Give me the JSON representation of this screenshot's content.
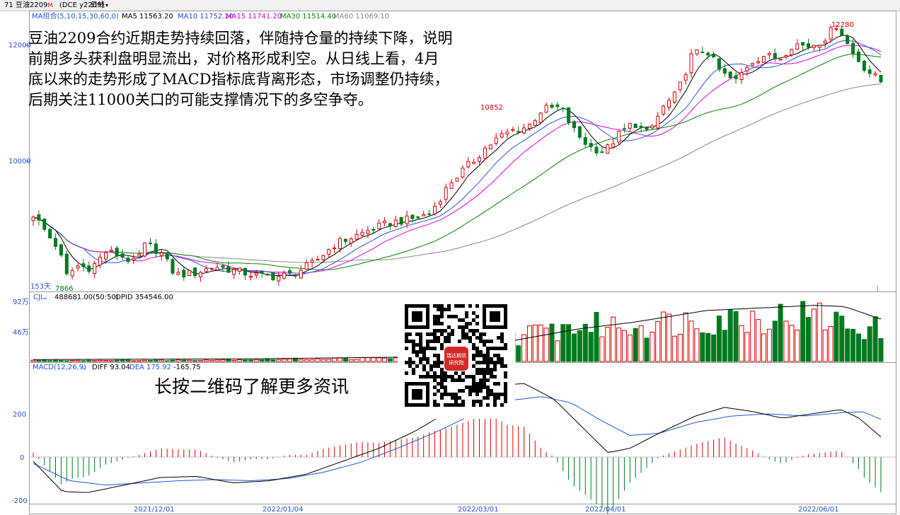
{
  "title_bar": {
    "code_label": "71",
    "instrument": "豆油2209",
    "flag": "M",
    "exchange": "(DCE y2209)",
    "period": "日线"
  },
  "colors": {
    "up": "#dd0000",
    "down": "#007a1e",
    "ma5": "#000000",
    "ma10": "#2255dd",
    "ma15": "#dd00dd",
    "ma30": "#008800",
    "ma60": "#888888",
    "axis": "#2255dd"
  },
  "price_panel": {
    "ma_group_label": "MA组合(5,10,15,30,60,0)",
    "ma_values": [
      {
        "name": "MA5",
        "text": "MA5 11563.20",
        "color": "#000000"
      },
      {
        "name": "MA10",
        "text": "MA10 11752.20",
        "color": "#2255dd"
      },
      {
        "name": "MA15",
        "text": "MA15 11741.20",
        "color": "#dd00dd"
      },
      {
        "name": "MA30",
        "text": "MA30 11514.40",
        "color": "#008800"
      },
      {
        "name": "MA60",
        "text": "MA60 11069.10",
        "color": "#888888"
      }
    ],
    "y_ticks": [
      "12000",
      "10000"
    ],
    "days_label": "153天",
    "low_label": "7866",
    "peak_labels": [
      "10852",
      "12280"
    ]
  },
  "volume_panel": {
    "legend": "CJL",
    "cjl_value": "488681.00(50:50)",
    "opid_value": "OPID 354546.00",
    "y_ticks": [
      "92万",
      "46万"
    ]
  },
  "macd_panel": {
    "legend": "MACD(12,26,9)",
    "diff": "DIFF 93.04",
    "dea": "DEA 175.92",
    "macd": "-165.75",
    "y_ticks": [
      "200",
      "0",
      "-200"
    ]
  },
  "x_axis_dates": [
    "2021/12/01",
    "2022/01/04",
    "2022/03/01",
    "2022/04/01",
    "2022/06/01"
  ],
  "overlay_text": "豆油2209合约近期走势持续回落，伴随持仓量的持续下降，说明前期多头获利盘明显流出，对价格形成利空。从日线上看，4月底以来的走势形成了MACD指标底背离形态，市场调整仍持续，后期关注11000关口的可能支撑情况下的多空争夺。",
  "qr": {
    "logo_line1": "瑞达期货",
    "logo_line2": "研究院",
    "caption": "长按二维码了解更多资讯"
  },
  "chart_data": {
    "type": "candlestick",
    "instrument": "豆油2209 (DCE y2209)",
    "period": "日线",
    "bar_count": 153,
    "price_ticks": [
      10000,
      12000
    ],
    "price_range": [
      7800,
      12450
    ],
    "price_path": [
      [
        0,
        9030
      ],
      [
        5,
        8600
      ],
      [
        7,
        8450
      ],
      [
        9,
        7970
      ],
      [
        12,
        8150
      ],
      [
        16,
        8120
      ],
      [
        20,
        8400
      ],
      [
        25,
        8300
      ],
      [
        28,
        8200
      ],
      [
        31,
        8530
      ],
      [
        35,
        8380
      ],
      [
        39,
        8000
      ],
      [
        44,
        8020
      ],
      [
        50,
        8150
      ],
      [
        56,
        8060
      ],
      [
        62,
        7980
      ],
      [
        67,
        7970
      ],
      [
        71,
        8000
      ],
      [
        77,
        8200
      ],
      [
        83,
        8530
      ],
      [
        88,
        8650
      ],
      [
        93,
        8780
      ],
      [
        99,
        8900
      ],
      [
        104,
        8950
      ],
      [
        109,
        9050
      ],
      [
        115,
        9600
      ],
      [
        121,
        9950
      ],
      [
        124,
        10150
      ],
      [
        128,
        10350
      ],
      [
        132,
        10470
      ],
      [
        136,
        10530
      ],
      [
        140,
        10830
      ],
      [
        145,
        10852
      ],
      [
        149,
        10430
      ],
      [
        153,
        10180
      ],
      [
        157,
        10100
      ],
      [
        161,
        10400
      ],
      [
        165,
        10600
      ],
      [
        169,
        10400
      ],
      [
        173,
        10850
      ],
      [
        177,
        11100
      ],
      [
        181,
        11750
      ],
      [
        185,
        11850
      ],
      [
        189,
        11450
      ],
      [
        193,
        11300
      ],
      [
        197,
        11630
      ],
      [
        201,
        11750
      ],
      [
        205,
        11680
      ],
      [
        209,
        11950
      ],
      [
        213,
        11900
      ],
      [
        217,
        12000
      ],
      [
        221,
        12280
      ],
      [
        225,
        11800
      ],
      [
        229,
        11500
      ],
      [
        233,
        11300
      ]
    ],
    "x_axis_dates": [
      "2021/12/01",
      "2022/01/04",
      "2022/03/01",
      "2022/04/01",
      "2022/06/01"
    ],
    "labeled_extremes": [
      {
        "label": "7866",
        "type": "low"
      },
      {
        "label": "10852",
        "type": "high"
      },
      {
        "label": "12280",
        "type": "high"
      }
    ],
    "moving_averages": [
      {
        "name": "MA5",
        "last": 11563.2
      },
      {
        "name": "MA10",
        "last": 11752.2
      },
      {
        "name": "MA15",
        "last": 11741.2
      },
      {
        "name": "MA30",
        "last": 11514.4
      },
      {
        "name": "MA60",
        "last": 11069.1
      }
    ],
    "volume": {
      "legend": "CJL",
      "last": 488681.0,
      "opid_last": 354546.0,
      "y_ticks": [
        "92万",
        "46万"
      ],
      "level_path": [
        [
          0,
          2
        ],
        [
          35,
          2
        ],
        [
          70,
          4
        ],
        [
          105,
          6
        ],
        [
          130,
          40
        ],
        [
          150,
          60
        ],
        [
          165,
          62
        ],
        [
          185,
          72
        ],
        [
          200,
          75
        ],
        [
          215,
          78
        ],
        [
          225,
          60
        ],
        [
          233,
          55
        ]
      ],
      "opid_path": [
        [
          0,
          3
        ],
        [
          60,
          4
        ],
        [
          105,
          7
        ],
        [
          130,
          30
        ],
        [
          150,
          50
        ],
        [
          165,
          60
        ],
        [
          185,
          78
        ],
        [
          200,
          82
        ],
        [
          215,
          86
        ],
        [
          223,
          84
        ],
        [
          233,
          65
        ]
      ]
    },
    "macd": {
      "params": "12,26,9",
      "diff": 93.04,
      "dea": 175.92,
      "macd": -165.75,
      "y_ticks": [
        200,
        0,
        -200
      ],
      "diff_path": [
        [
          0,
          -20
        ],
        [
          8,
          -160
        ],
        [
          15,
          -165
        ],
        [
          25,
          -130
        ],
        [
          35,
          -95
        ],
        [
          45,
          -90
        ],
        [
          55,
          -120
        ],
        [
          65,
          -110
        ],
        [
          75,
          -80
        ],
        [
          85,
          -20
        ],
        [
          95,
          40
        ],
        [
          105,
          120
        ],
        [
          115,
          220
        ],
        [
          125,
          330
        ],
        [
          135,
          340
        ],
        [
          143,
          270
        ],
        [
          152,
          120
        ],
        [
          158,
          20
        ],
        [
          164,
          40
        ],
        [
          172,
          110
        ],
        [
          182,
          190
        ],
        [
          190,
          230
        ],
        [
          198,
          210
        ],
        [
          206,
          180
        ],
        [
          214,
          200
        ],
        [
          222,
          220
        ],
        [
          227,
          180
        ],
        [
          233,
          93
        ]
      ],
      "dea_path": [
        [
          0,
          -30
        ],
        [
          10,
          -110
        ],
        [
          20,
          -130
        ],
        [
          30,
          -120
        ],
        [
          40,
          -110
        ],
        [
          50,
          -105
        ],
        [
          60,
          -110
        ],
        [
          70,
          -100
        ],
        [
          80,
          -70
        ],
        [
          90,
          -25
        ],
        [
          100,
          40
        ],
        [
          110,
          110
        ],
        [
          120,
          190
        ],
        [
          130,
          260
        ],
        [
          140,
          280
        ],
        [
          148,
          250
        ],
        [
          156,
          170
        ],
        [
          164,
          100
        ],
        [
          172,
          110
        ],
        [
          182,
          160
        ],
        [
          192,
          190
        ],
        [
          202,
          200
        ],
        [
          212,
          190
        ],
        [
          222,
          205
        ],
        [
          228,
          210
        ],
        [
          233,
          175
        ]
      ]
    }
  }
}
